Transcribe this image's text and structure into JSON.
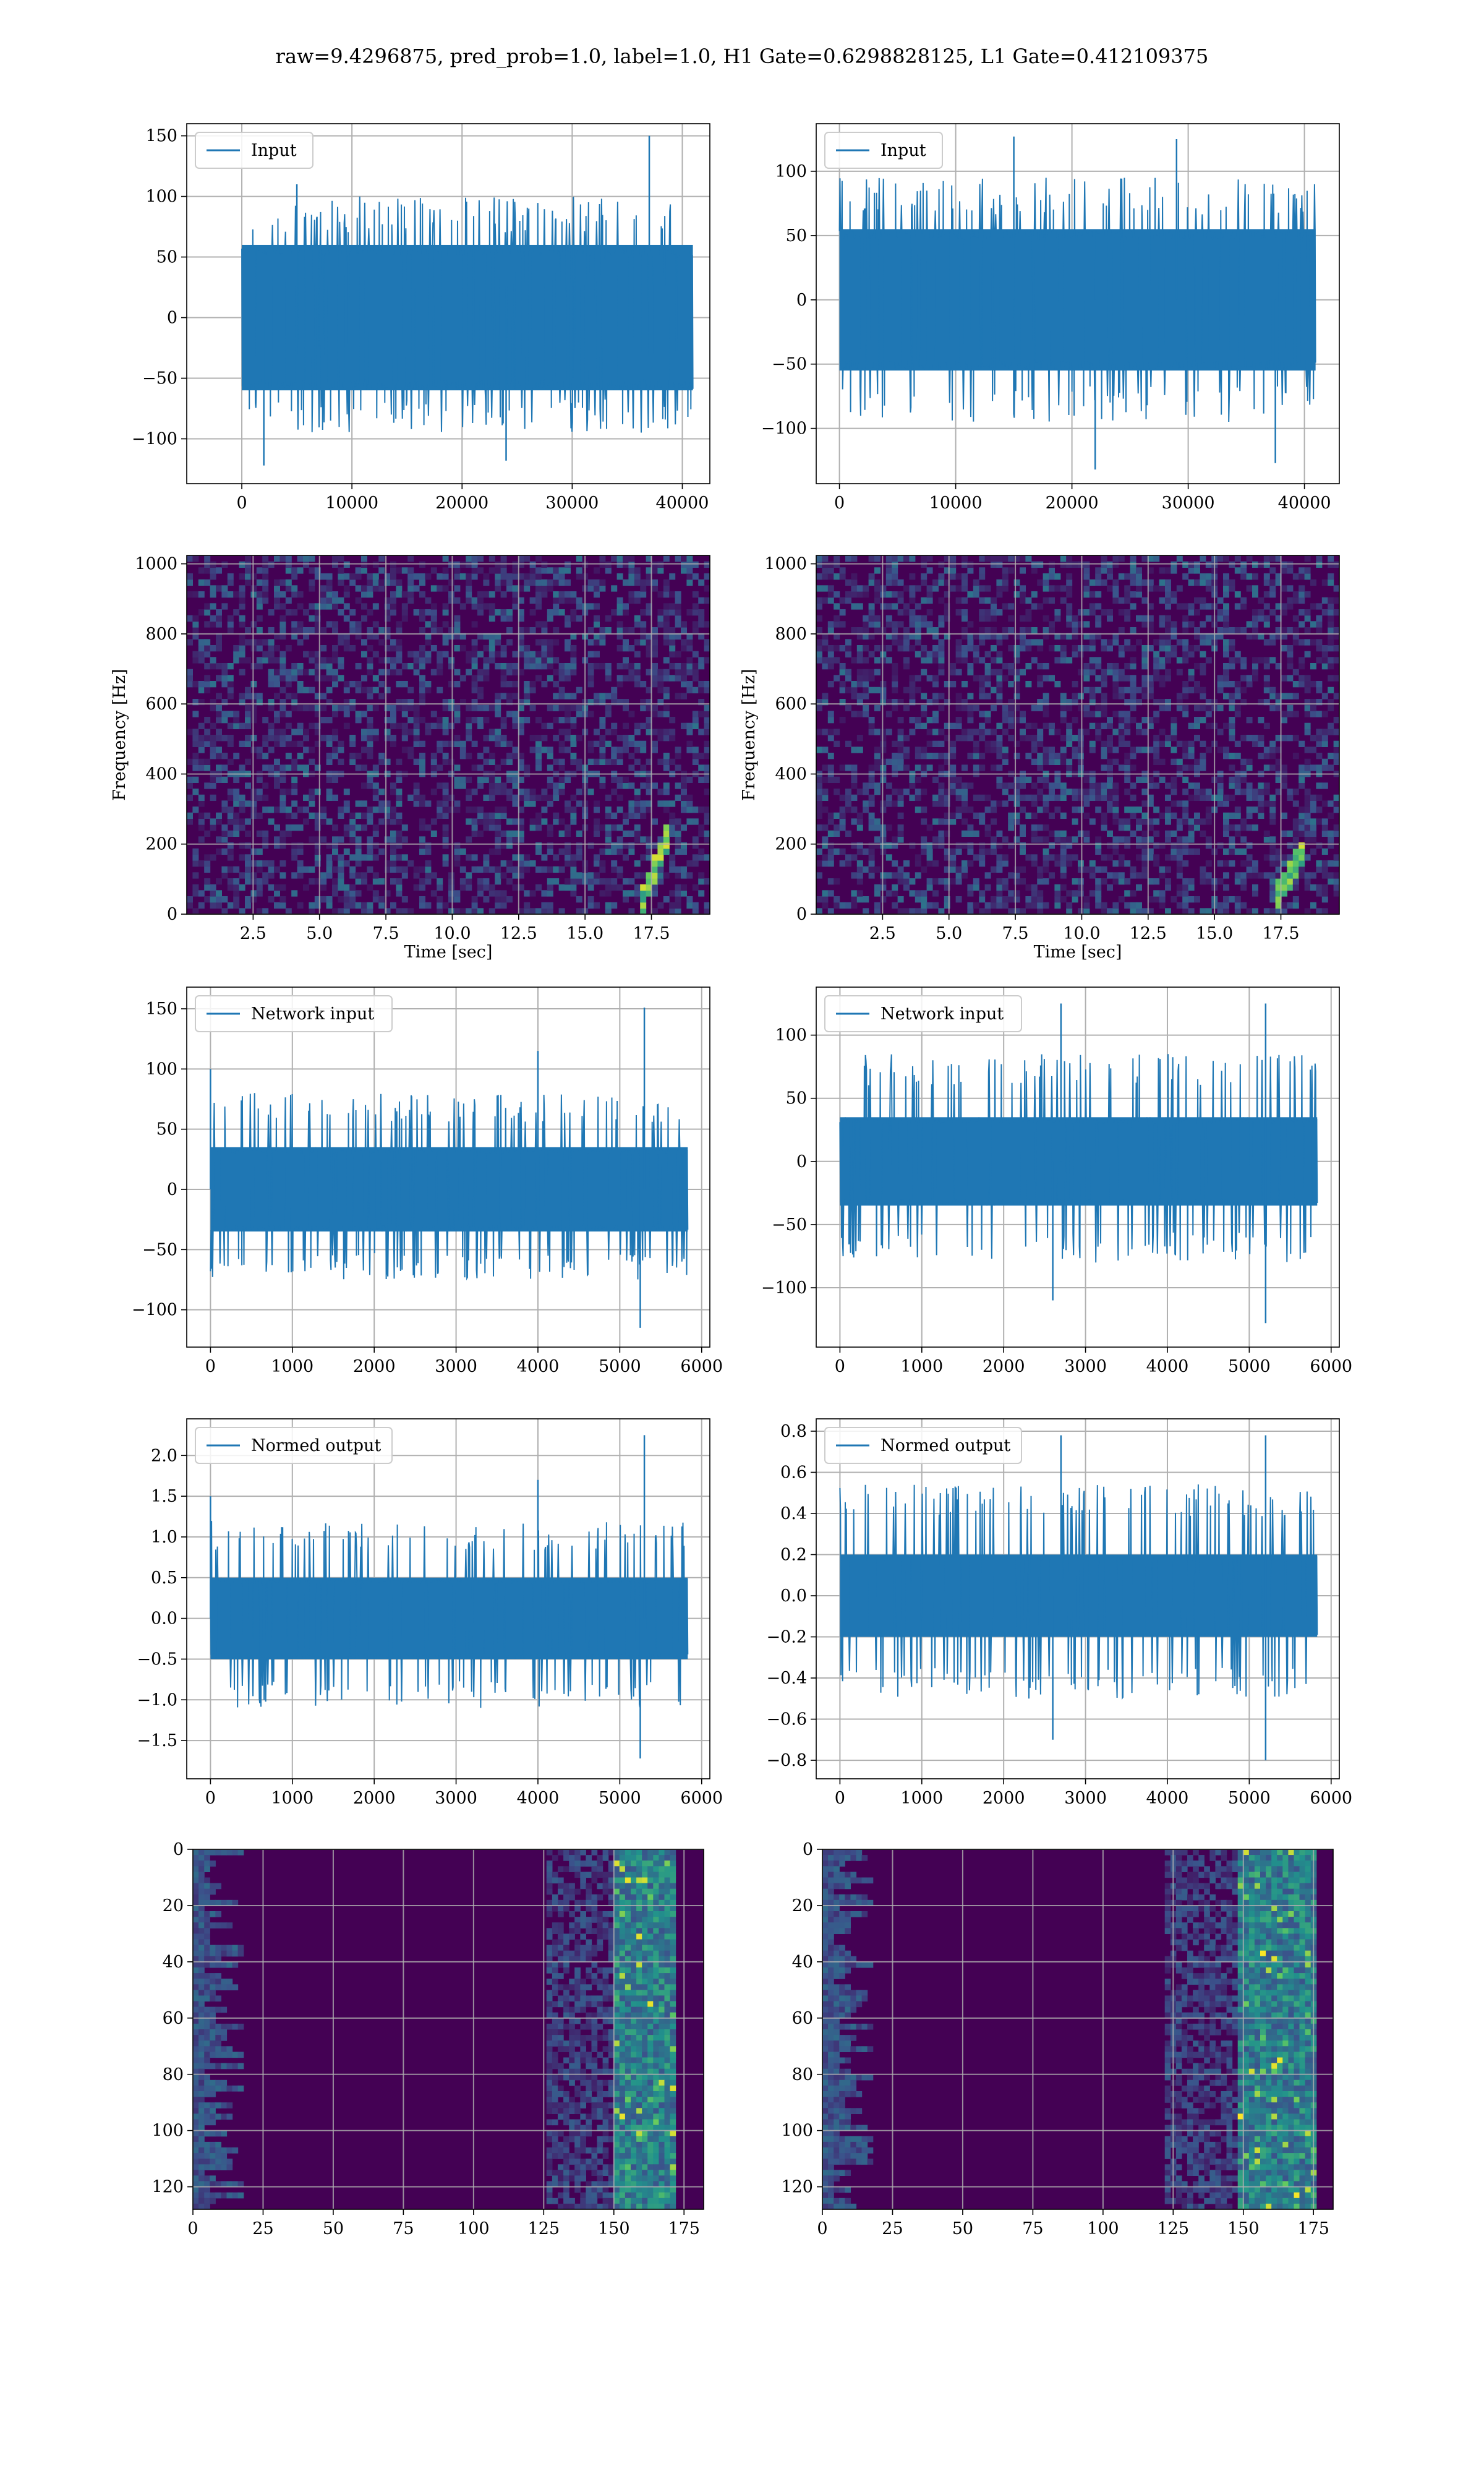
{
  "suptitle": "raw=9.4296875, pred_prob=1.0, label=1.0, H1 Gate=0.6298828125, L1 Gate=0.412109375",
  "colors": {
    "series": "#1f77b4",
    "grid": "#b0b0b0",
    "viridis_dark": "#440154",
    "viridis_mid": "#3b528b",
    "viridis_teal": "#21918c",
    "viridis_green": "#5ec962",
    "viridis_yellow": "#fde725"
  },
  "chart_data": [
    {
      "id": "input-h1",
      "type": "line",
      "legend": "Input",
      "legend_loc": "top-left",
      "grid": true,
      "xlim": [
        -5000,
        42500
      ],
      "ylim": [
        -137,
        160
      ],
      "xticks": [
        0,
        10000,
        20000,
        30000,
        40000
      ],
      "yticks": [
        -100,
        -50,
        0,
        50,
        100,
        150
      ],
      "series": [
        {
          "x_range": [
            0,
            40960
          ],
          "envelope": [
            -60,
            60
          ],
          "typical_spikes": [
            -95,
            100
          ],
          "spikes": [
            {
              "x": 37000,
              "y": 150
            },
            {
              "x": 2000,
              "y": -122
            },
            {
              "x": 24000,
              "y": -118
            },
            {
              "x": 5000,
              "y": 110
            }
          ]
        }
      ]
    },
    {
      "id": "input-l1",
      "type": "line",
      "legend": "Input",
      "legend_loc": "top-left",
      "grid": true,
      "xlim": [
        -2000,
        43000
      ],
      "ylim": [
        -143,
        137
      ],
      "xticks": [
        0,
        10000,
        20000,
        30000,
        40000
      ],
      "yticks": [
        -100,
        -50,
        0,
        50,
        100
      ],
      "series": [
        {
          "x_range": [
            0,
            40960
          ],
          "envelope": [
            -55,
            55
          ],
          "typical_spikes": [
            -95,
            95
          ],
          "spikes": [
            {
              "x": 15000,
              "y": 127
            },
            {
              "x": 37500,
              "y": -127
            },
            {
              "x": 22000,
              "y": -132
            },
            {
              "x": 29000,
              "y": 125
            }
          ]
        }
      ]
    },
    {
      "id": "spec-h1",
      "type": "heatmap",
      "grid": true,
      "xlabel": "Time [sec]",
      "ylabel": "Frequency [Hz]",
      "xlim": [
        0,
        19.7
      ],
      "ylim": [
        0,
        1024
      ],
      "xticks": [
        2.5,
        5.0,
        7.5,
        10.0,
        12.5,
        15.0,
        17.5
      ],
      "yticks": [
        0,
        200,
        400,
        600,
        800,
        1000
      ],
      "chirp": {
        "t_end": 18.1,
        "f_start": 30,
        "f_end": 250
      }
    },
    {
      "id": "spec-l1",
      "type": "heatmap",
      "grid": true,
      "xlabel": "Time [sec]",
      "ylabel": "Frequency [Hz]",
      "xlim": [
        0,
        19.7
      ],
      "ylim": [
        0,
        1024
      ],
      "xticks": [
        2.5,
        5.0,
        7.5,
        10.0,
        12.5,
        15.0,
        17.5
      ],
      "yticks": [
        0,
        200,
        400,
        600,
        800,
        1000
      ],
      "chirp": {
        "t_end": 18.2,
        "f_start": 30,
        "f_end": 180
      }
    },
    {
      "id": "net-h1",
      "type": "line",
      "legend": "Network input",
      "legend_loc": "top-left",
      "grid": true,
      "xlim": [
        -290,
        6100
      ],
      "ylim": [
        -131,
        168
      ],
      "xticks": [
        0,
        1000,
        2000,
        3000,
        4000,
        5000,
        6000
      ],
      "yticks": [
        -100,
        -50,
        0,
        50,
        100,
        150
      ],
      "series": [
        {
          "x_range": [
            0,
            5830
          ],
          "envelope": [
            -35,
            35
          ],
          "typical_spikes": [
            -75,
            80
          ],
          "spikes": [
            {
              "x": 5300,
              "y": 151
            },
            {
              "x": 5250,
              "y": -115
            },
            {
              "x": 0,
              "y": 100
            },
            {
              "x": 4000,
              "y": 115
            }
          ]
        }
      ]
    },
    {
      "id": "net-l1",
      "type": "line",
      "legend": "Network input",
      "legend_loc": "top-left",
      "grid": true,
      "xlim": [
        -290,
        6100
      ],
      "ylim": [
        -147,
        138
      ],
      "xticks": [
        0,
        1000,
        2000,
        3000,
        4000,
        5000,
        6000
      ],
      "yticks": [
        -100,
        -50,
        0,
        50,
        100
      ],
      "series": [
        {
          "x_range": [
            0,
            5830
          ],
          "envelope": [
            -35,
            35
          ],
          "typical_spikes": [
            -80,
            85
          ],
          "spikes": [
            {
              "x": 2700,
              "y": 125
            },
            {
              "x": 5200,
              "y": 125
            },
            {
              "x": 5200,
              "y": -128
            },
            {
              "x": 2600,
              "y": -110
            }
          ]
        }
      ]
    },
    {
      "id": "norm-h1",
      "type": "line",
      "legend": "Normed output",
      "legend_loc": "top-left",
      "grid": true,
      "xlim": [
        -290,
        6100
      ],
      "ylim": [
        -1.97,
        2.45
      ],
      "xticks": [
        0,
        1000,
        2000,
        3000,
        4000,
        5000,
        6000
      ],
      "yticks": [
        -1.5,
        -1.0,
        -0.5,
        0.0,
        0.5,
        1.0,
        1.5,
        2.0
      ],
      "series": [
        {
          "x_range": [
            0,
            5830
          ],
          "envelope": [
            -0.5,
            0.5
          ],
          "typical_spikes": [
            -1.1,
            1.2
          ],
          "spikes": [
            {
              "x": 5300,
              "y": 2.25
            },
            {
              "x": 5250,
              "y": -1.72
            },
            {
              "x": 0,
              "y": 1.5
            },
            {
              "x": 4000,
              "y": 1.7
            }
          ]
        }
      ]
    },
    {
      "id": "norm-l1",
      "type": "line",
      "legend": "Normed output",
      "legend_loc": "top-left",
      "grid": true,
      "xlim": [
        -290,
        6100
      ],
      "ylim": [
        -0.89,
        0.86
      ],
      "xticks": [
        0,
        1000,
        2000,
        3000,
        4000,
        5000,
        6000
      ],
      "yticks": [
        -0.8,
        -0.6,
        -0.4,
        -0.2,
        0.0,
        0.2,
        0.4,
        0.6,
        0.8
      ],
      "series": [
        {
          "x_range": [
            0,
            5830
          ],
          "envelope": [
            -0.2,
            0.2
          ],
          "typical_spikes": [
            -0.5,
            0.55
          ],
          "spikes": [
            {
              "x": 2700,
              "y": 0.78
            },
            {
              "x": 5200,
              "y": 0.78
            },
            {
              "x": 5200,
              "y": -0.8
            },
            {
              "x": 2600,
              "y": -0.7
            }
          ]
        }
      ]
    },
    {
      "id": "feat-h1",
      "type": "heatmap",
      "grid": true,
      "inverted_y": true,
      "xlim": [
        0,
        182
      ],
      "ylim": [
        128,
        0
      ],
      "xticks": [
        0,
        25,
        50,
        75,
        100,
        125,
        150,
        175
      ],
      "yticks": [
        0,
        20,
        40,
        60,
        80,
        100,
        120
      ],
      "hot_band": {
        "x_start": 150,
        "x_end": 172
      }
    },
    {
      "id": "feat-l1",
      "type": "heatmap",
      "grid": true,
      "inverted_y": true,
      "xlim": [
        0,
        182
      ],
      "ylim": [
        128,
        0
      ],
      "xticks": [
        0,
        25,
        50,
        75,
        100,
        125,
        150,
        175
      ],
      "yticks": [
        0,
        20,
        40,
        60,
        80,
        100,
        120
      ],
      "hot_band": {
        "x_start": 148,
        "x_end": 175
      }
    }
  ]
}
